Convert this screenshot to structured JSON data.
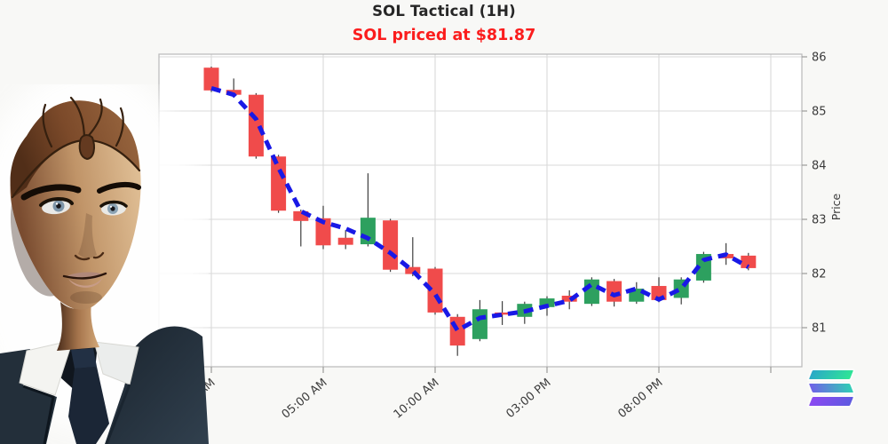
{
  "page": {
    "background": "#f8f8f6"
  },
  "header": {
    "title": "SOL Tactical (1H)",
    "title_color": "#262626",
    "subtitle": "SOL priced at $81.87",
    "subtitle_color": "#fb1d1d"
  },
  "chart_data": {
    "type": "candlestick",
    "symbol": "SOL",
    "interval": "1H",
    "title": "SOL Tactical (1H)",
    "ylabel": "Price",
    "y_ticks": [
      86,
      85,
      84,
      83,
      82,
      81
    ],
    "ylim": [
      80.3,
      86.05
    ],
    "x_ticks": [
      {
        "hour": 0,
        "label": "12:00 AM"
      },
      {
        "hour": 5,
        "label": "05:00 AM"
      },
      {
        "hour": 10,
        "label": "10:00 AM"
      },
      {
        "hour": 15,
        "label": "03:00 PM"
      },
      {
        "hour": 20,
        "label": "08:00 PM"
      },
      {
        "hour": 25,
        "label": ""
      }
    ],
    "grid": true,
    "up_color": "#2da05f",
    "down_color": "#f04b4b",
    "wick_color": "#3f3f3f",
    "ma_color": "#1919e6",
    "grid_color": "#d9d9d9",
    "axis_text_color": "#3b3b3b",
    "candles": [
      {
        "time": "12:00 AM",
        "open": 85.8,
        "high": 85.82,
        "low": 85.35,
        "close": 85.38
      },
      {
        "time": "01:00 AM",
        "open": 85.39,
        "high": 85.6,
        "low": 85.25,
        "close": 85.3
      },
      {
        "time": "02:00 AM",
        "open": 85.3,
        "high": 85.33,
        "low": 84.12,
        "close": 84.16
      },
      {
        "time": "03:00 AM",
        "open": 84.16,
        "high": 84.19,
        "low": 83.12,
        "close": 83.16
      },
      {
        "time": "04:00 AM",
        "open": 83.15,
        "high": 83.18,
        "low": 82.5,
        "close": 82.97
      },
      {
        "time": "05:00 AM",
        "open": 83.02,
        "high": 83.25,
        "low": 82.45,
        "close": 82.52
      },
      {
        "time": "06:00 AM",
        "open": 82.66,
        "high": 82.8,
        "low": 82.45,
        "close": 82.53
      },
      {
        "time": "07:00 AM",
        "open": 82.54,
        "high": 83.85,
        "low": 82.5,
        "close": 83.03
      },
      {
        "time": "08:00 AM",
        "open": 82.98,
        "high": 83.01,
        "low": 82.03,
        "close": 82.07
      },
      {
        "time": "09:00 AM",
        "open": 82.12,
        "high": 82.67,
        "low": 81.95,
        "close": 81.99
      },
      {
        "time": "10:00 AM",
        "open": 82.09,
        "high": 82.12,
        "low": 81.24,
        "close": 81.28
      },
      {
        "time": "11:00 AM",
        "open": 81.2,
        "high": 81.25,
        "low": 80.48,
        "close": 80.67
      },
      {
        "time": "12:00 PM",
        "open": 80.79,
        "high": 81.51,
        "low": 80.75,
        "close": 81.34
      },
      {
        "time": "01:00 PM",
        "open": 81.28,
        "high": 81.49,
        "low": 81.05,
        "close": 81.24
      },
      {
        "time": "02:00 PM",
        "open": 81.2,
        "high": 81.48,
        "low": 81.07,
        "close": 81.44
      },
      {
        "time": "03:00 PM",
        "open": 81.38,
        "high": 81.58,
        "low": 81.22,
        "close": 81.54
      },
      {
        "time": "04:00 PM",
        "open": 81.59,
        "high": 81.69,
        "low": 81.34,
        "close": 81.48
      },
      {
        "time": "05:00 PM",
        "open": 81.44,
        "high": 81.93,
        "low": 81.4,
        "close": 81.89
      },
      {
        "time": "06:00 PM",
        "open": 81.86,
        "high": 81.9,
        "low": 81.39,
        "close": 81.48
      },
      {
        "time": "07:00 PM",
        "open": 81.48,
        "high": 81.84,
        "low": 81.44,
        "close": 81.72
      },
      {
        "time": "08:00 PM",
        "open": 81.77,
        "high": 81.93,
        "low": 81.47,
        "close": 81.51
      },
      {
        "time": "09:00 PM",
        "open": 81.55,
        "high": 81.93,
        "low": 81.43,
        "close": 81.89
      },
      {
        "time": "10:00 PM",
        "open": 81.87,
        "high": 82.4,
        "low": 81.83,
        "close": 82.36
      },
      {
        "time": "11:00 PM",
        "open": 82.36,
        "high": 82.56,
        "low": 82.16,
        "close": 82.28
      },
      {
        "time": "12:00 AM",
        "open": 82.33,
        "high": 82.38,
        "low": 82.06,
        "close": 82.1
      }
    ],
    "ma_series": {
      "name": "moving-average",
      "style": "dashed",
      "values": [
        85.42,
        85.3,
        84.85,
        83.95,
        83.15,
        82.95,
        82.83,
        82.65,
        82.38,
        82.05,
        81.62,
        80.95,
        81.18,
        81.24,
        81.3,
        81.4,
        81.5,
        81.8,
        81.6,
        81.72,
        81.52,
        81.72,
        82.25,
        82.35,
        82.12
      ]
    }
  },
  "branding": {
    "solana_logo": {
      "bar_top": [
        "#2aa8c8",
        "#2fe695"
      ],
      "bar_mid": [
        "#7160e8",
        "#2fd0b5"
      ],
      "bar_bot": [
        "#8c49f2",
        "#5e5ae0"
      ]
    }
  }
}
